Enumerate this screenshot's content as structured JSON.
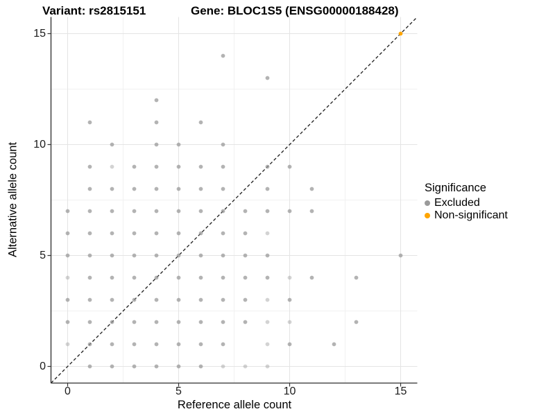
{
  "title_left": "Variant: rs2815151",
  "title_right": "Gene: BLOC1S5 (ENSG00000188428)",
  "axes": {
    "x_label": "Reference allele count",
    "y_label": "Alternative allele count",
    "x_ticks": [
      0,
      5,
      10,
      15
    ],
    "y_ticks": [
      0,
      5,
      10,
      15
    ]
  },
  "legend": {
    "title": "Significance",
    "items": [
      {
        "label": "Excluded",
        "color": "#9a9a9a"
      },
      {
        "label": "Non-significant",
        "color": "#FFA500"
      }
    ]
  },
  "colors": {
    "excluded_point": "#969696",
    "nonsignificant_point": "#FFA500",
    "major_gridline": "#e4e4e4",
    "minor_gridline": "#f1f1f1",
    "axis_line": "#4a4a4a",
    "tick_mark": "#333333",
    "identity_line": "#1a1a1a"
  },
  "chart_data": {
    "type": "scatter",
    "title": "Variant: rs2815151   Gene: BLOC1S5 (ENSG00000188428)",
    "xlabel": "Reference allele count",
    "ylabel": "Alternative allele count",
    "xlim": [
      -0.75,
      15.75
    ],
    "ylim": [
      -0.75,
      15.75
    ],
    "grid": true,
    "x_major": [
      0,
      5,
      10,
      15
    ],
    "x_minor": [
      2.5,
      7.5,
      12.5
    ],
    "y_major": [
      0,
      5,
      10,
      15
    ],
    "y_minor": [
      2.5,
      7.5,
      12.5
    ],
    "identity_line": {
      "show": true,
      "style": "dashed",
      "from": [
        0,
        0
      ],
      "to": [
        15,
        15
      ]
    },
    "legend_position": "right",
    "series": [
      {
        "name": "Excluded",
        "color": "#969696",
        "points": [
          [
            1,
            0
          ],
          [
            2,
            0
          ],
          [
            3,
            0
          ],
          [
            4,
            0
          ],
          [
            5,
            0
          ],
          [
            6,
            0
          ],
          [
            7,
            0,
            1
          ],
          [
            8,
            0,
            1
          ],
          [
            9,
            0,
            1
          ],
          [
            0,
            1,
            1
          ],
          [
            1,
            1
          ],
          [
            2,
            1
          ],
          [
            3,
            1
          ],
          [
            4,
            1
          ],
          [
            5,
            1
          ],
          [
            6,
            1
          ],
          [
            7,
            1
          ],
          [
            9,
            1,
            1
          ],
          [
            10,
            1
          ],
          [
            12,
            1
          ],
          [
            0,
            2
          ],
          [
            1,
            2
          ],
          [
            2,
            2
          ],
          [
            3,
            2
          ],
          [
            4,
            2
          ],
          [
            5,
            2
          ],
          [
            6,
            2
          ],
          [
            7,
            2
          ],
          [
            8,
            2
          ],
          [
            9,
            2,
            1
          ],
          [
            10,
            2,
            1
          ],
          [
            13,
            2
          ],
          [
            0,
            3
          ],
          [
            1,
            3
          ],
          [
            2,
            3
          ],
          [
            3,
            3
          ],
          [
            4,
            3
          ],
          [
            5,
            3
          ],
          [
            6,
            3
          ],
          [
            7,
            3
          ],
          [
            8,
            3
          ],
          [
            9,
            3,
            1
          ],
          [
            10,
            3
          ],
          [
            0,
            4,
            1
          ],
          [
            1,
            4
          ],
          [
            2,
            4
          ],
          [
            3,
            4
          ],
          [
            4,
            4
          ],
          [
            5,
            4
          ],
          [
            6,
            4
          ],
          [
            7,
            4
          ],
          [
            8,
            4
          ],
          [
            9,
            4
          ],
          [
            10,
            4,
            1
          ],
          [
            11,
            4
          ],
          [
            13,
            4
          ],
          [
            0,
            5
          ],
          [
            1,
            5
          ],
          [
            2,
            5
          ],
          [
            3,
            5
          ],
          [
            4,
            5
          ],
          [
            5,
            5
          ],
          [
            6,
            5
          ],
          [
            7,
            5
          ],
          [
            8,
            5
          ],
          [
            9,
            5
          ],
          [
            15,
            5
          ],
          [
            0,
            6
          ],
          [
            1,
            6
          ],
          [
            2,
            6
          ],
          [
            3,
            6
          ],
          [
            4,
            6
          ],
          [
            5,
            6
          ],
          [
            6,
            6
          ],
          [
            7,
            6
          ],
          [
            8,
            6
          ],
          [
            9,
            6,
            1
          ],
          [
            0,
            7
          ],
          [
            1,
            7
          ],
          [
            2,
            7
          ],
          [
            3,
            7
          ],
          [
            4,
            7
          ],
          [
            5,
            7
          ],
          [
            6,
            7
          ],
          [
            7,
            7
          ],
          [
            8,
            7
          ],
          [
            9,
            7
          ],
          [
            10,
            7
          ],
          [
            11,
            7
          ],
          [
            1,
            8
          ],
          [
            2,
            8
          ],
          [
            3,
            8
          ],
          [
            4,
            8
          ],
          [
            5,
            8
          ],
          [
            6,
            8
          ],
          [
            7,
            8
          ],
          [
            9,
            8
          ],
          [
            11,
            8
          ],
          [
            1,
            9
          ],
          [
            2,
            9,
            1
          ],
          [
            3,
            9
          ],
          [
            4,
            9
          ],
          [
            5,
            9
          ],
          [
            6,
            9
          ],
          [
            7,
            9
          ],
          [
            9,
            9
          ],
          [
            10,
            9
          ],
          [
            2,
            10
          ],
          [
            4,
            10
          ],
          [
            5,
            10
          ],
          [
            7,
            10
          ],
          [
            1,
            11
          ],
          [
            4,
            11
          ],
          [
            6,
            11
          ],
          [
            4,
            12
          ],
          [
            9,
            13
          ],
          [
            7,
            14
          ]
        ]
      },
      {
        "name": "Non-significant",
        "color": "#FFA500",
        "points": [
          [
            15,
            15
          ]
        ]
      }
    ]
  }
}
